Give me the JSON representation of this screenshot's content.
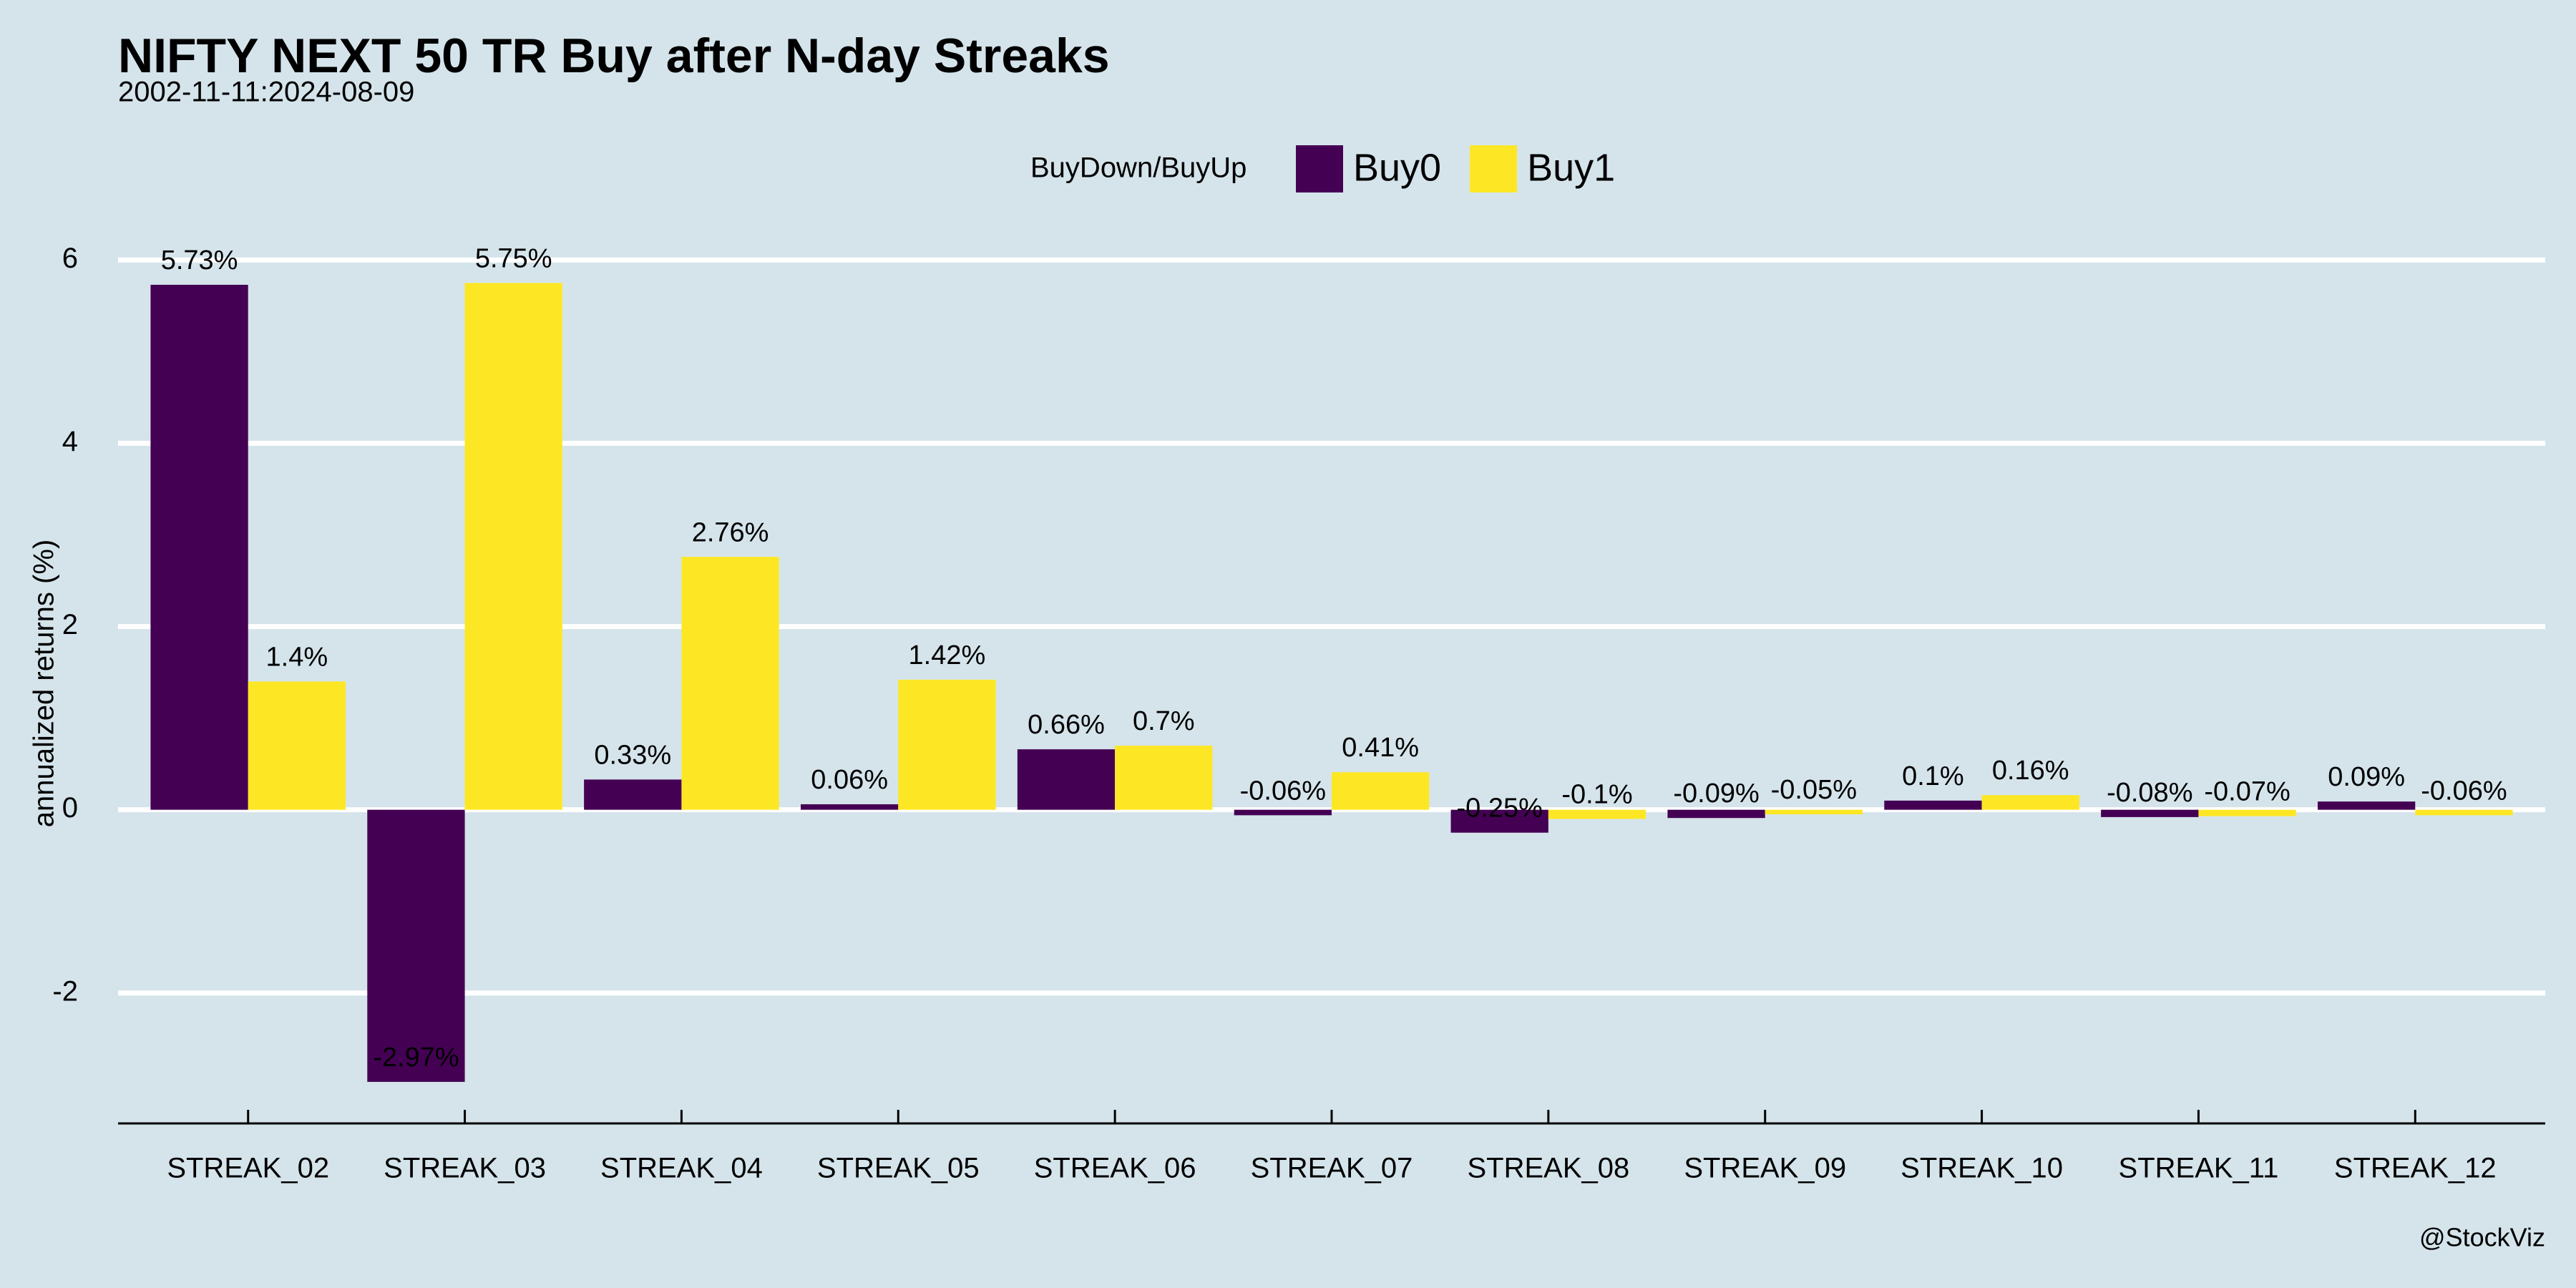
{
  "chart_data": {
    "type": "bar",
    "title": "NIFTY NEXT 50 TR Buy after N-day Streaks",
    "subtitle": "2002-11-11:2024-08-09",
    "y_label": "annualized returns (%)",
    "legend_title": "BuyDown/BuyUp",
    "caption": "@StockViz",
    "categories": [
      "STREAK_02",
      "STREAK_03",
      "STREAK_04",
      "STREAK_05",
      "STREAK_06",
      "STREAK_07",
      "STREAK_08",
      "STREAK_09",
      "STREAK_10",
      "STREAK_11",
      "STREAK_12"
    ],
    "series": [
      {
        "name": "Buy0",
        "color": "#440154",
        "values": [
          5.73,
          -2.97,
          0.33,
          0.06,
          0.66,
          -0.06,
          -0.25,
          -0.09,
          0.1,
          -0.08,
          0.09
        ],
        "value_labels": [
          "5.73%",
          "-2.97%",
          "0.33%",
          "0.06%",
          "0.66%",
          "-0.06%",
          "-0.25%",
          "-0.09%",
          "0.1%",
          "-0.08%",
          "0.09%"
        ]
      },
      {
        "name": "Buy1",
        "color": "#fde725",
        "values": [
          1.4,
          5.75,
          2.76,
          1.42,
          0.7,
          0.41,
          -0.1,
          -0.05,
          0.16,
          -0.07,
          -0.06
        ],
        "value_labels": [
          "1.4%",
          "5.75%",
          "2.76%",
          "1.42%",
          "0.7%",
          "0.41%",
          "-0.1%",
          "-0.05%",
          "0.16%",
          "-0.07%",
          "-0.06%"
        ]
      }
    ],
    "ylim": [
      -3.4,
      6.3
    ],
    "yticks": [
      -2,
      0,
      2,
      4,
      6
    ],
    "grid": true
  }
}
